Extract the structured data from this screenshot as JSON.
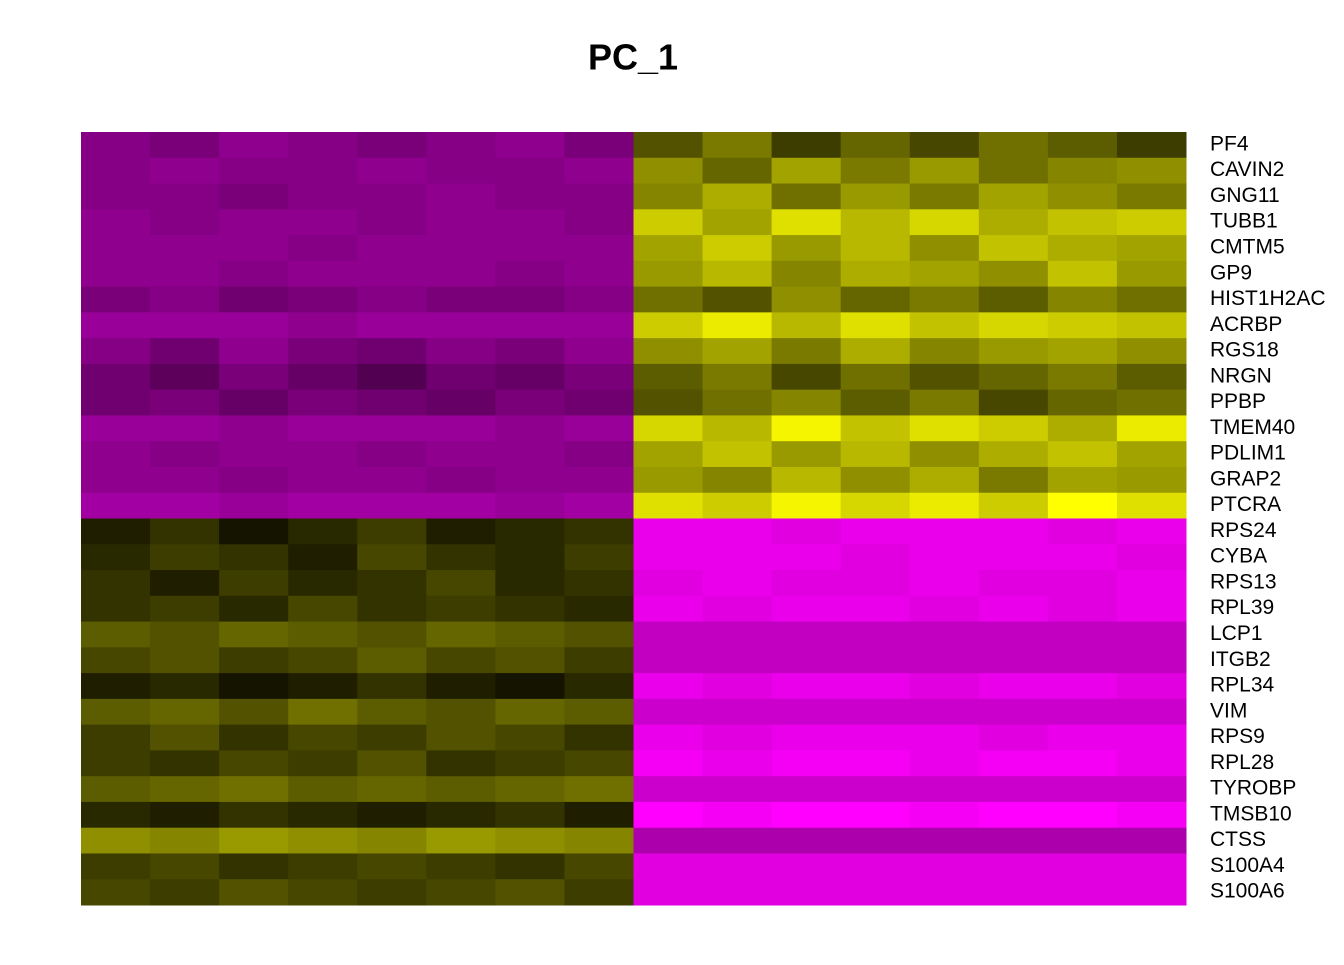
{
  "chart_data": {
    "type": "heatmap",
    "title": "PC_1",
    "rows": [
      "PF4",
      "CAVIN2",
      "GNG11",
      "TUBB1",
      "CMTM5",
      "GP9",
      "HIST1H2AC",
      "ACRBP",
      "RGS18",
      "NRGN",
      "PPBP",
      "TMEM40",
      "PDLIM1",
      "GRAP2",
      "PTCRA",
      "RPS24",
      "CYBA",
      "RPS13",
      "RPL39",
      "LCP1",
      "ITGB2",
      "RPL34",
      "VIM",
      "RPS9",
      "RPL28",
      "TYROBP",
      "TMSB10",
      "CTSS",
      "S100A4",
      "S100A6"
    ],
    "categories": [
      null,
      null,
      null,
      null,
      null,
      null,
      null,
      null,
      null,
      null,
      null,
      null,
      null,
      null,
      null,
      null
    ],
    "colors": [
      "#ff00ff",
      "#000000",
      "#ffff00"
    ],
    "zlim": [
      -2.5,
      2.5
    ],
    "values": [
      [
        -1.3,
        -1.2,
        -1.4,
        -1.3,
        -1.2,
        -1.3,
        -1.4,
        -1.2,
        0.8,
        1.2,
        0.6,
        1.0,
        0.7,
        1.1,
        0.9,
        0.6
      ],
      [
        -1.3,
        -1.4,
        -1.3,
        -1.3,
        -1.4,
        -1.3,
        -1.3,
        -1.4,
        1.4,
        1.0,
        1.6,
        1.2,
        1.5,
        1.1,
        1.3,
        1.4
      ],
      [
        -1.3,
        -1.3,
        -1.2,
        -1.3,
        -1.3,
        -1.4,
        -1.3,
        -1.3,
        1.3,
        1.7,
        1.1,
        1.5,
        1.2,
        1.6,
        1.4,
        1.2
      ],
      [
        -1.4,
        -1.3,
        -1.4,
        -1.4,
        -1.3,
        -1.4,
        -1.4,
        -1.3,
        2.0,
        1.6,
        2.2,
        1.8,
        2.1,
        1.7,
        1.9,
        2.0
      ],
      [
        -1.4,
        -1.4,
        -1.4,
        -1.3,
        -1.4,
        -1.4,
        -1.4,
        -1.4,
        1.6,
        2.0,
        1.5,
        1.8,
        1.4,
        1.9,
        1.7,
        1.6
      ],
      [
        -1.4,
        -1.4,
        -1.3,
        -1.4,
        -1.4,
        -1.4,
        -1.3,
        -1.4,
        1.5,
        1.8,
        1.3,
        1.7,
        1.6,
        1.4,
        1.9,
        1.5
      ],
      [
        -1.2,
        -1.3,
        -1.1,
        -1.2,
        -1.3,
        -1.2,
        -1.2,
        -1.3,
        1.1,
        0.8,
        1.4,
        1.0,
        1.2,
        0.9,
        1.3,
        1.1
      ],
      [
        -1.5,
        -1.5,
        -1.5,
        -1.4,
        -1.5,
        -1.5,
        -1.5,
        -1.5,
        2.0,
        2.3,
        1.8,
        2.2,
        1.9,
        2.1,
        2.0,
        1.9
      ],
      [
        -1.3,
        -1.1,
        -1.4,
        -1.2,
        -1.1,
        -1.3,
        -1.2,
        -1.4,
        1.4,
        1.6,
        1.2,
        1.7,
        1.3,
        1.5,
        1.6,
        1.4
      ],
      [
        -1.1,
        -0.9,
        -1.2,
        -1.0,
        -0.8,
        -1.1,
        -1.0,
        -1.2,
        0.9,
        1.2,
        0.7,
        1.1,
        0.8,
        1.0,
        1.2,
        0.9
      ],
      [
        -1.1,
        -1.2,
        -1.0,
        -1.2,
        -1.1,
        -1.0,
        -1.2,
        -1.1,
        0.8,
        1.1,
        1.3,
        0.9,
        1.2,
        0.7,
        1.0,
        1.1
      ],
      [
        -1.5,
        -1.5,
        -1.4,
        -1.5,
        -1.5,
        -1.5,
        -1.4,
        -1.5,
        2.1,
        1.8,
        2.4,
        1.9,
        2.2,
        2.0,
        1.7,
        2.3
      ],
      [
        -1.4,
        -1.3,
        -1.4,
        -1.4,
        -1.3,
        -1.4,
        -1.4,
        -1.3,
        1.6,
        1.9,
        1.5,
        1.8,
        1.4,
        1.7,
        1.9,
        1.6
      ],
      [
        -1.4,
        -1.4,
        -1.3,
        -1.4,
        -1.4,
        -1.3,
        -1.4,
        -1.4,
        1.5,
        1.3,
        1.8,
        1.4,
        1.7,
        1.2,
        1.6,
        1.5
      ],
      [
        -1.6,
        -1.6,
        -1.5,
        -1.6,
        -1.6,
        -1.6,
        -1.5,
        -1.6,
        2.2,
        2.0,
        2.4,
        2.1,
        2.3,
        2.0,
        2.5,
        2.2
      ],
      [
        0.3,
        0.5,
        0.2,
        0.4,
        0.6,
        0.3,
        0.4,
        0.5,
        -2.3,
        -2.3,
        -2.2,
        -2.3,
        -2.3,
        -2.3,
        -2.2,
        -2.3
      ],
      [
        0.4,
        0.6,
        0.5,
        0.3,
        0.7,
        0.5,
        0.4,
        0.6,
        -2.3,
        -2.3,
        -2.3,
        -2.2,
        -2.3,
        -2.3,
        -2.3,
        -2.2
      ],
      [
        0.5,
        0.3,
        0.6,
        0.4,
        0.5,
        0.7,
        0.4,
        0.5,
        -2.2,
        -2.3,
        -2.2,
        -2.2,
        -2.3,
        -2.2,
        -2.2,
        -2.3
      ],
      [
        0.5,
        0.6,
        0.4,
        0.7,
        0.5,
        0.6,
        0.5,
        0.4,
        -2.3,
        -2.2,
        -2.3,
        -2.3,
        -2.2,
        -2.3,
        -2.2,
        -2.3
      ],
      [
        0.9,
        0.8,
        1.0,
        0.9,
        0.8,
        1.0,
        0.9,
        0.8,
        -1.9,
        -1.9,
        -1.9,
        -1.9,
        -1.9,
        -1.9,
        -1.9,
        -1.9
      ],
      [
        0.7,
        0.8,
        0.6,
        0.7,
        0.9,
        0.7,
        0.8,
        0.6,
        -1.9,
        -1.9,
        -1.9,
        -1.9,
        -1.9,
        -1.9,
        -1.9,
        -1.9
      ],
      [
        0.3,
        0.4,
        0.2,
        0.3,
        0.5,
        0.3,
        0.2,
        0.4,
        -2.3,
        -2.2,
        -2.3,
        -2.3,
        -2.2,
        -2.3,
        -2.3,
        -2.2
      ],
      [
        0.9,
        1.0,
        0.8,
        1.1,
        0.9,
        0.8,
        1.0,
        0.9,
        -2.0,
        -2.0,
        -2.0,
        -2.0,
        -2.0,
        -2.0,
        -2.0,
        -2.0
      ],
      [
        0.6,
        0.8,
        0.5,
        0.7,
        0.6,
        0.8,
        0.7,
        0.5,
        -2.3,
        -2.2,
        -2.3,
        -2.3,
        -2.3,
        -2.2,
        -2.3,
        -2.3
      ],
      [
        0.6,
        0.5,
        0.7,
        0.6,
        0.8,
        0.5,
        0.6,
        0.7,
        -2.4,
        -2.3,
        -2.4,
        -2.4,
        -2.3,
        -2.4,
        -2.4,
        -2.3
      ],
      [
        0.9,
        1.0,
        1.1,
        0.9,
        1.0,
        0.9,
        1.0,
        1.1,
        -2.0,
        -2.0,
        -2.0,
        -2.0,
        -2.0,
        -2.0,
        -2.0,
        -2.0
      ],
      [
        0.4,
        0.3,
        0.5,
        0.4,
        0.3,
        0.4,
        0.5,
        0.3,
        -2.5,
        -2.4,
        -2.5,
        -2.5,
        -2.4,
        -2.5,
        -2.5,
        -2.4
      ],
      [
        1.4,
        1.3,
        1.5,
        1.4,
        1.3,
        1.5,
        1.4,
        1.3,
        -1.7,
        -1.7,
        -1.7,
        -1.7,
        -1.7,
        -1.7,
        -1.7,
        -1.7
      ],
      [
        0.6,
        0.7,
        0.5,
        0.6,
        0.7,
        0.6,
        0.5,
        0.7,
        -2.2,
        -2.2,
        -2.2,
        -2.2,
        -2.2,
        -2.2,
        -2.2,
        -2.2
      ],
      [
        0.7,
        0.6,
        0.8,
        0.7,
        0.6,
        0.7,
        0.8,
        0.6,
        -2.2,
        -2.2,
        -2.2,
        -2.2,
        -2.2,
        -2.2,
        -2.2,
        -2.2
      ]
    ]
  }
}
